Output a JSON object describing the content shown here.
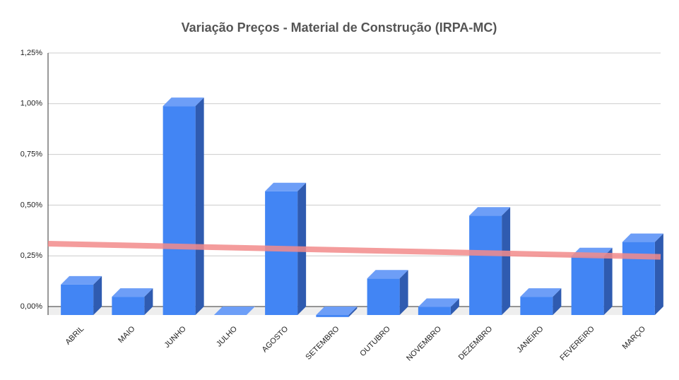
{
  "chart_data": {
    "type": "bar3d",
    "title": "Variação Preços - Material de Construção (IRPA-MC)",
    "categories": [
      "ABRIL",
      "MAIO",
      "JUNHO",
      "JULHO",
      "AGOSTO",
      "SETEMBRO",
      "OUTUBRO",
      "NOVEMBRO",
      "DEZEMBRO",
      "JANEIRO",
      "FEVEREIRO",
      "MARÇO"
    ],
    "values": [
      0.15,
      0.09,
      1.03,
      0,
      0.61,
      -0.01,
      0.18,
      0.04,
      0.49,
      0.09,
      0.29,
      0.36
    ],
    "color": "#4285f4",
    "ylim": [
      0,
      1.25
    ],
    "yticks": [
      {
        "value": 0,
        "label": "0,00%"
      },
      {
        "value": 0.25,
        "label": "0,25%"
      },
      {
        "value": 0.5,
        "label": "0,50%"
      },
      {
        "value": 0.75,
        "label": "0,75%"
      },
      {
        "value": 1,
        "label": "1,00%"
      },
      {
        "value": 1.25,
        "label": "1,25%"
      }
    ],
    "grid": true,
    "trendline": true,
    "trendline_color": "#f28b8b"
  }
}
